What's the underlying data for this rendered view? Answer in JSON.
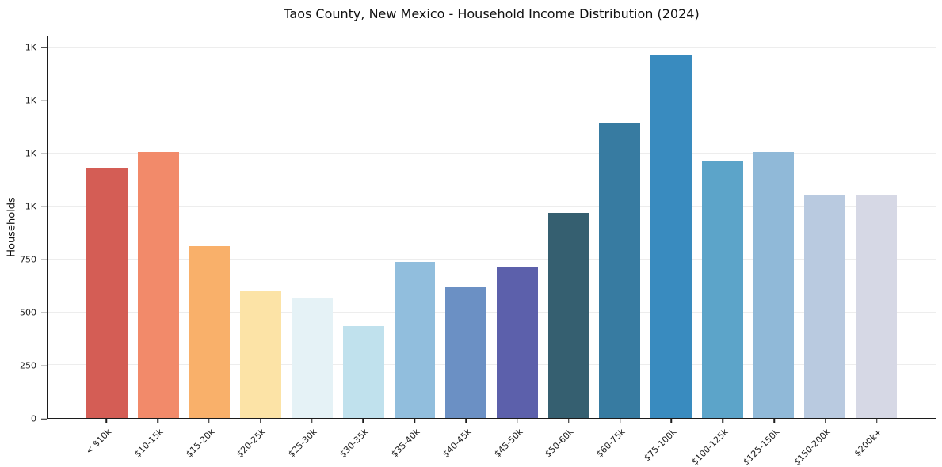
{
  "chart_data": {
    "type": "bar",
    "title": "Taos County, New Mexico - Household Income Distribution (2024)",
    "xlabel": "",
    "ylabel": "Households",
    "ylim": [
      0,
      1806
    ],
    "grid": "horizontal",
    "legend_position": "none",
    "axis_color": "#1c1c1c",
    "gridline_color": "#ededed",
    "background_color": "#ffffff",
    "y_ticks": [
      {
        "value": 0,
        "label": "0"
      },
      {
        "value": 250,
        "label": "250"
      },
      {
        "value": 500,
        "label": "500"
      },
      {
        "value": 750,
        "label": "750"
      },
      {
        "value": 1000,
        "label": "1K"
      },
      {
        "value": 1250,
        "label": "1K"
      },
      {
        "value": 1500,
        "label": "1K"
      },
      {
        "value": 1750,
        "label": "1K"
      }
    ],
    "categories": [
      "< $10k",
      "$10-15k",
      "$15-20k",
      "$20-25k",
      "$25-30k",
      "$30-35k",
      "$35-40k",
      "$40-45k",
      "$45-50k",
      "$50-60k",
      "$60-75k",
      "$75-100k",
      "$100-125k",
      "$125-150k",
      "$150-200k",
      "$200k+"
    ],
    "values": [
      1185,
      1260,
      815,
      600,
      570,
      435,
      740,
      620,
      715,
      970,
      1395,
      1720,
      1215,
      1260,
      1055,
      1055
    ],
    "bar_colors": [
      "#d45d55",
      "#f28a6a",
      "#f9b06a",
      "#fce3a6",
      "#e5f2f6",
      "#c0e1ed",
      "#91bedd",
      "#6b90c4",
      "#5c60ab",
      "#355f70",
      "#377ba1",
      "#398bbf",
      "#5ca4c9",
      "#90b9d8",
      "#b9cae0",
      "#d6d8e5"
    ]
  }
}
